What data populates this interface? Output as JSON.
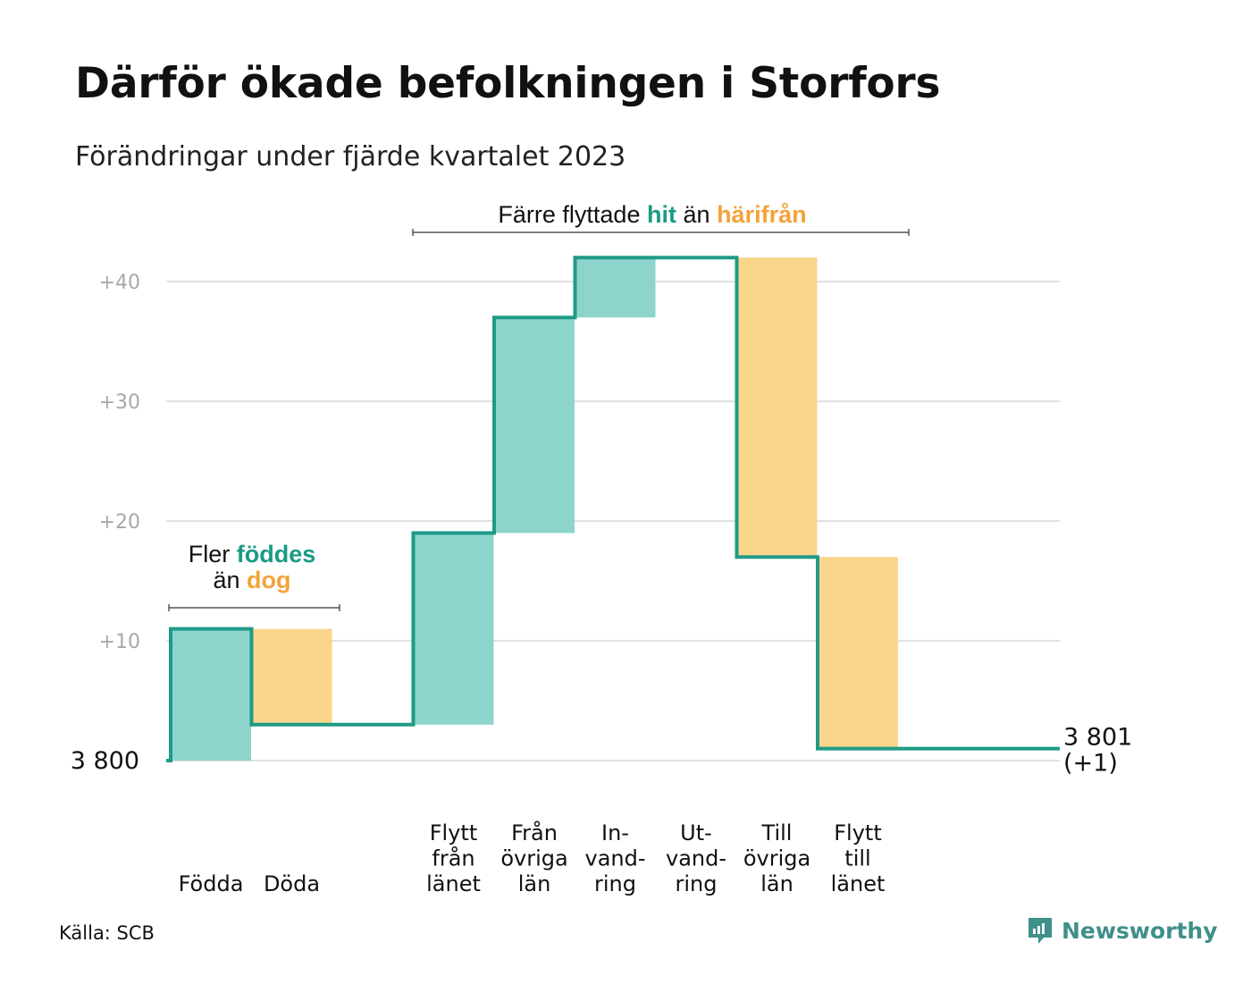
{
  "title": "Därför ökade befolkningen i Storfors",
  "subtitle": "Förändringar under fjärde kvartalet 2023",
  "source": "Källa: SCB",
  "brand": "Newsworthy",
  "colors": {
    "inflow": "#8dd5cc",
    "outflow": "#fad58c",
    "line": "#1f9a86",
    "accent_teal": "#1a9a85",
    "accent_orange": "#f2a43a",
    "grid": "#e1e1e1"
  },
  "annotations": {
    "births": {
      "w1": "Fler",
      "b1": "föddes",
      "w2": "än",
      "b2": "dog"
    },
    "migration": {
      "w1": "Färre flyttade",
      "b1": "hit",
      "w2": "än",
      "b2": "härifrån"
    }
  },
  "chart_data": {
    "type": "waterfall",
    "baseline_label": "3  800",
    "end_label_line1": "3 801",
    "end_label_line2": "(+1)",
    "ylim": [
      0,
      42
    ],
    "yticks": [
      {
        "value": 10,
        "label": "+10"
      },
      {
        "value": 20,
        "label": "+20"
      },
      {
        "value": 30,
        "label": "+30"
      },
      {
        "value": 40,
        "label": "+40"
      }
    ],
    "steps": [
      {
        "category": [
          "Födda"
        ],
        "change": 11,
        "kind": "inflow"
      },
      {
        "category": [
          "Döda"
        ],
        "change": -8,
        "kind": "outflow"
      },
      {
        "category": [],
        "change": 0,
        "kind": "gap"
      },
      {
        "category": [
          "Flytt",
          "från",
          "länet"
        ],
        "change": 16,
        "kind": "inflow"
      },
      {
        "category": [
          "Från",
          "övriga",
          "län"
        ],
        "change": 18,
        "kind": "inflow"
      },
      {
        "category": [
          "In-",
          "vand-",
          "ring"
        ],
        "change": 5,
        "kind": "inflow"
      },
      {
        "category": [
          "Ut-",
          "vand-",
          "ring"
        ],
        "change": 0,
        "kind": "outflow"
      },
      {
        "category": [
          "Till",
          "övriga",
          "län"
        ],
        "change": -25,
        "kind": "outflow"
      },
      {
        "category": [
          "Flytt",
          "till",
          "länet"
        ],
        "change": -16,
        "kind": "outflow"
      }
    ],
    "final_change": 1
  }
}
